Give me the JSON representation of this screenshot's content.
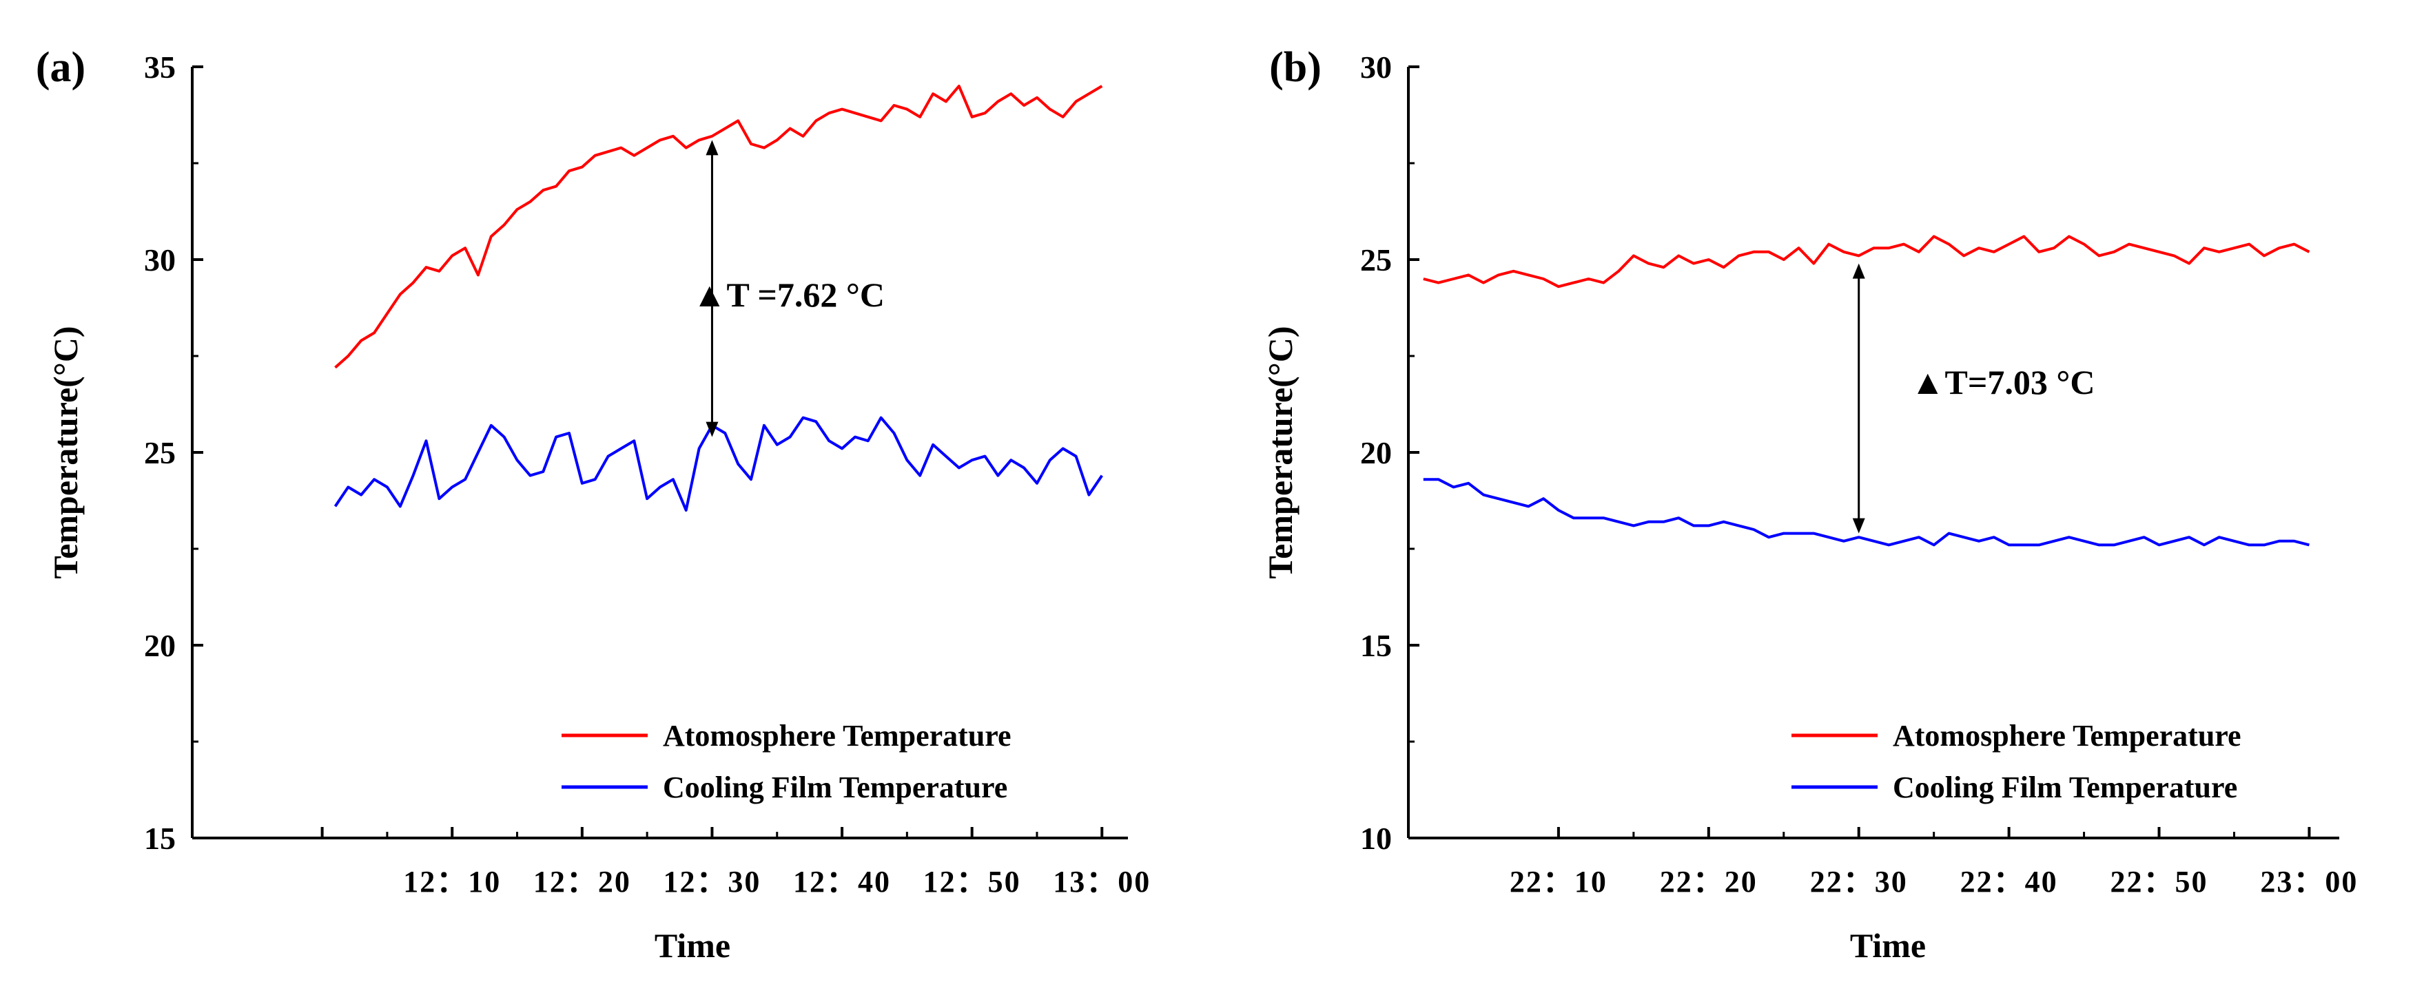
{
  "chart_data": [
    {
      "type": "line",
      "panel_label": "(a)",
      "title": "",
      "xlabel": "Time",
      "ylabel": "Temperature(°C)",
      "ylim": [
        15,
        35
      ],
      "yticks": [
        "15",
        "20",
        "25",
        "30",
        "35"
      ],
      "xlim": [
        -10,
        62
      ],
      "xticks": [
        {
          "x": 0,
          "label": ""
        },
        {
          "x": 10,
          "label": "12：10"
        },
        {
          "x": 20,
          "label": "12：20"
        },
        {
          "x": 30,
          "label": "12：30"
        },
        {
          "x": 40,
          "label": "12：40"
        },
        {
          "x": 50,
          "label": "12：50"
        },
        {
          "x": 60,
          "label": "13：00"
        }
      ],
      "x_start": 1,
      "x_step": 1,
      "legend": "bottom-right",
      "annotation": {
        "text": "▲T =7.62 °C",
        "x": 30,
        "y_top": 33.1,
        "y_bottom": 25.4
      },
      "series": [
        {
          "name": "Atomosphere Temperature",
          "color": "#ff0000",
          "values": [
            27.2,
            27.5,
            27.9,
            28.1,
            28.6,
            29.1,
            29.4,
            29.8,
            29.7,
            30.1,
            30.3,
            29.6,
            30.6,
            30.9,
            31.3,
            31.5,
            31.8,
            31.9,
            32.3,
            32.4,
            32.7,
            32.8,
            32.9,
            32.7,
            32.9,
            33.1,
            33.2,
            32.9,
            33.1,
            33.2,
            33.4,
            33.6,
            33.0,
            32.9,
            33.1,
            33.4,
            33.2,
            33.6,
            33.8,
            33.9,
            33.8,
            33.7,
            33.6,
            34.0,
            33.9,
            33.7,
            34.3,
            34.1,
            34.5,
            33.7,
            33.8,
            34.1,
            34.3,
            34.0,
            34.2,
            33.9,
            33.7,
            34.1,
            34.3,
            34.5
          ]
        },
        {
          "name": "Cooling Film Temperature",
          "color": "#0000ff",
          "values": [
            23.6,
            24.1,
            23.9,
            24.3,
            24.1,
            23.6,
            24.4,
            25.3,
            23.8,
            24.1,
            24.3,
            25.0,
            25.7,
            25.4,
            24.8,
            24.4,
            24.5,
            25.4,
            25.5,
            24.2,
            24.3,
            24.9,
            25.1,
            25.3,
            23.8,
            24.1,
            24.3,
            23.5,
            25.1,
            25.7,
            25.5,
            24.7,
            24.3,
            25.7,
            25.2,
            25.4,
            25.9,
            25.8,
            25.3,
            25.1,
            25.4,
            25.3,
            25.9,
            25.5,
            24.8,
            24.4,
            25.2,
            24.9,
            24.6,
            24.8,
            24.9,
            24.4,
            24.8,
            24.6,
            24.2,
            24.8,
            25.1,
            24.9,
            23.9,
            24.4
          ]
        }
      ]
    },
    {
      "type": "line",
      "panel_label": "(b)",
      "title": "",
      "xlabel": "Time",
      "ylabel": "Temperature(°C)",
      "ylim": [
        10,
        30
      ],
      "yticks": [
        "10",
        "15",
        "20",
        "25",
        "30"
      ],
      "xlim": [
        0,
        62
      ],
      "xticks": [
        {
          "x": 10,
          "label": "22：10"
        },
        {
          "x": 20,
          "label": "22：20"
        },
        {
          "x": 30,
          "label": "22：30"
        },
        {
          "x": 40,
          "label": "22：40"
        },
        {
          "x": 50,
          "label": "22：50"
        },
        {
          "x": 60,
          "label": "23：00"
        }
      ],
      "x_start": 1,
      "x_step": 1,
      "legend": "bottom-right",
      "annotation": {
        "text": "▲T=7.03 °C",
        "x": 30,
        "y_top": 24.9,
        "y_bottom": 17.9
      },
      "series": [
        {
          "name": "Atomosphere Temperature",
          "color": "#ff0000",
          "values": [
            24.5,
            24.4,
            24.5,
            24.6,
            24.4,
            24.6,
            24.7,
            24.6,
            24.5,
            24.3,
            24.4,
            24.5,
            24.4,
            24.7,
            25.1,
            24.9,
            24.8,
            25.1,
            24.9,
            25.0,
            24.8,
            25.1,
            25.2,
            25.2,
            25.0,
            25.3,
            24.9,
            25.4,
            25.2,
            25.1,
            25.3,
            25.3,
            25.4,
            25.2,
            25.6,
            25.4,
            25.1,
            25.3,
            25.2,
            25.4,
            25.6,
            25.2,
            25.3,
            25.6,
            25.4,
            25.1,
            25.2,
            25.4,
            25.3,
            25.2,
            25.1,
            24.9,
            25.3,
            25.2,
            25.3,
            25.4,
            25.1,
            25.3,
            25.4,
            25.2
          ]
        },
        {
          "name": "Cooling Film Temperature",
          "color": "#0000ff",
          "values": [
            19.3,
            19.3,
            19.1,
            19.2,
            18.9,
            18.8,
            18.7,
            18.6,
            18.8,
            18.5,
            18.3,
            18.3,
            18.3,
            18.2,
            18.1,
            18.2,
            18.2,
            18.3,
            18.1,
            18.1,
            18.2,
            18.1,
            18.0,
            17.8,
            17.9,
            17.9,
            17.9,
            17.8,
            17.7,
            17.8,
            17.7,
            17.6,
            17.7,
            17.8,
            17.6,
            17.9,
            17.8,
            17.7,
            17.8,
            17.6,
            17.6,
            17.6,
            17.7,
            17.8,
            17.7,
            17.6,
            17.6,
            17.7,
            17.8,
            17.6,
            17.7,
            17.8,
            17.6,
            17.8,
            17.7,
            17.6,
            17.6,
            17.7,
            17.7,
            17.6
          ]
        }
      ]
    }
  ]
}
